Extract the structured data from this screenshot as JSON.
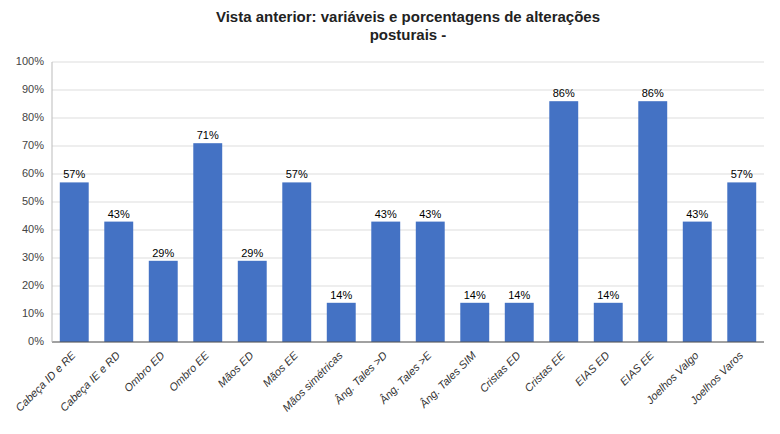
{
  "chart_data": {
    "type": "bar",
    "title": "Vista anterior: variáveis e porcentagens de alterações\nposturais -",
    "categories": [
      "Cabeça ID e RE",
      "Cabeça IE e RD",
      "Ombro ED",
      "Ombro EE",
      "Mãos ED",
      "Mãos EE",
      "Mãos simétricas",
      "Âng. Tales >D",
      "Âng. Tales >E",
      "Âng. Tales SIM",
      "Cristas ED",
      "Cristas EE",
      "EIAS ED",
      "EIAS EE",
      "Joelhos Valgo",
      "Joelhos Varos"
    ],
    "values": [
      57,
      43,
      29,
      71,
      29,
      57,
      14,
      43,
      43,
      14,
      14,
      86,
      14,
      86,
      43,
      57
    ],
    "value_labels": [
      "57%",
      "43%",
      "29%",
      "71%",
      "29%",
      "57%",
      "14%",
      "43%",
      "43%",
      "14%",
      "14%",
      "86%",
      "14%",
      "86%",
      "43%",
      "57%"
    ],
    "color": "#4472C4",
    "ylim": [
      0,
      100
    ],
    "yticks": [
      {
        "value": 0,
        "label": "0%"
      },
      {
        "value": 10,
        "label": "10%"
      },
      {
        "value": 20,
        "label": "20%"
      },
      {
        "value": 30,
        "label": "30%"
      },
      {
        "value": 40,
        "label": "40%"
      },
      {
        "value": 50,
        "label": "50%"
      },
      {
        "value": 60,
        "label": "60%"
      },
      {
        "value": 70,
        "label": "70%"
      },
      {
        "value": 80,
        "label": "80%"
      },
      {
        "value": 90,
        "label": "90%"
      },
      {
        "value": 100,
        "label": "100%"
      }
    ],
    "grid": true,
    "data_labels": true
  }
}
